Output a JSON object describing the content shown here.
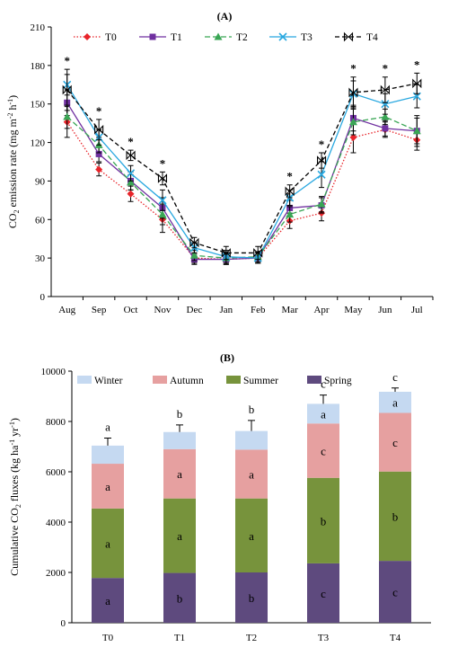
{
  "chart_data": [
    {
      "type": "line",
      "title": "(A)",
      "ylabel_main": "CO",
      "ylabel_sub": "2",
      "ylabel_rest": " emission rate (mg m",
      "ylabel_sup1": "-2",
      "ylabel_mid": " h",
      "ylabel_sup2": "-1",
      "ylabel_end": ")",
      "categories": [
        "Aug",
        "Sep",
        "Oct",
        "Nov",
        "Dec",
        "Jan",
        "Feb",
        "Mar",
        "Apr",
        "May",
        "Jun",
        "Jul"
      ],
      "ylim": [
        0,
        210
      ],
      "yticks": [
        "0",
        "30",
        "60",
        "90",
        "120",
        "150",
        "180",
        "210"
      ],
      "series": [
        {
          "name": "T0",
          "color": "#e8242a",
          "dash": "1.5,2",
          "marker": "diamond",
          "values": [
            136,
            99,
            80,
            60,
            30,
            29,
            30,
            59,
            65,
            124,
            130,
            122
          ],
          "errors": [
            12,
            5,
            6,
            10,
            4,
            4,
            4,
            6,
            6,
            12,
            6,
            8
          ]
        },
        {
          "name": "T1",
          "color": "#7030a0",
          "dash": "",
          "marker": "square",
          "values": [
            151,
            111,
            90,
            69,
            29,
            29,
            30,
            69,
            71,
            139,
            131,
            129
          ],
          "errors": [
            10,
            6,
            7,
            8,
            4,
            4,
            4,
            6,
            6,
            10,
            6,
            10
          ]
        },
        {
          "name": "T2",
          "color": "#3aa655",
          "dash": "6,3",
          "marker": "triangle",
          "values": [
            140,
            118,
            89,
            64,
            32,
            30,
            31,
            64,
            72,
            136,
            140,
            129
          ],
          "errors": [
            9,
            6,
            6,
            8,
            4,
            4,
            4,
            6,
            6,
            10,
            6,
            12
          ]
        },
        {
          "name": "T3",
          "color": "#29a8e0",
          "dash": "",
          "marker": "x",
          "values": [
            165,
            124,
            96,
            75,
            38,
            31,
            30,
            77,
            95,
            158,
            150,
            156
          ],
          "errors": [
            8,
            6,
            6,
            8,
            4,
            5,
            4,
            6,
            10,
            10,
            8,
            9
          ]
        },
        {
          "name": "T4",
          "color": "#000000",
          "dash": "5,3",
          "marker": "bowtie",
          "values": [
            161,
            130,
            110,
            92,
            42,
            34,
            34,
            82,
            106,
            159,
            161,
            166
          ],
          "errors": [
            16,
            8,
            4,
            5,
            4,
            5,
            5,
            5,
            6,
            12,
            10,
            8
          ]
        }
      ],
      "significance": [
        "*",
        "*",
        "*",
        "*",
        "",
        "",
        "",
        "*",
        "*",
        "*",
        "*",
        "*"
      ]
    },
    {
      "type": "bar",
      "stacked": true,
      "title": "(B)",
      "ylabel_main": "Cumulative CO",
      "ylabel_sub": "2",
      "ylabel_rest": " fluxes (kg ha",
      "ylabel_sup1": "-1",
      "ylabel_mid": " yr",
      "ylabel_sup2": "-1",
      "ylabel_end": ")",
      "categories": [
        "T0",
        "T1",
        "T2",
        "T3",
        "T4"
      ],
      "ylim": [
        0,
        10000
      ],
      "yticks": [
        "0",
        "2000",
        "4000",
        "6000",
        "8000",
        "10000"
      ],
      "series": [
        {
          "name": "Spring",
          "color": "#5e4a7e",
          "values": [
            1780,
            1980,
            2000,
            2360,
            2460
          ],
          "letters": [
            "a",
            "b",
            "b",
            "c",
            "c"
          ]
        },
        {
          "name": "Summer",
          "color": "#77933c",
          "values": [
            2760,
            2960,
            2940,
            3400,
            3550
          ],
          "letters": [
            "a",
            "a",
            "a",
            "b",
            "b"
          ]
        },
        {
          "name": "Autumn",
          "color": "#e6a0a0",
          "values": [
            1780,
            1960,
            1940,
            2160,
            2330
          ],
          "letters": [
            "a",
            "a",
            "a",
            "c",
            "c"
          ]
        },
        {
          "name": "Winter",
          "color": "#c5d9f1",
          "values": [
            720,
            680,
            740,
            780,
            840
          ],
          "letters": [
            "",
            "",
            "",
            "a",
            "a"
          ]
        }
      ],
      "total_errors": [
        300,
        280,
        420,
        350,
        150
      ],
      "total_letters": [
        "a",
        "b",
        "b",
        "c",
        "c"
      ],
      "legend": [
        "Winter",
        "Autumn",
        "Summer",
        "Spring"
      ]
    }
  ]
}
